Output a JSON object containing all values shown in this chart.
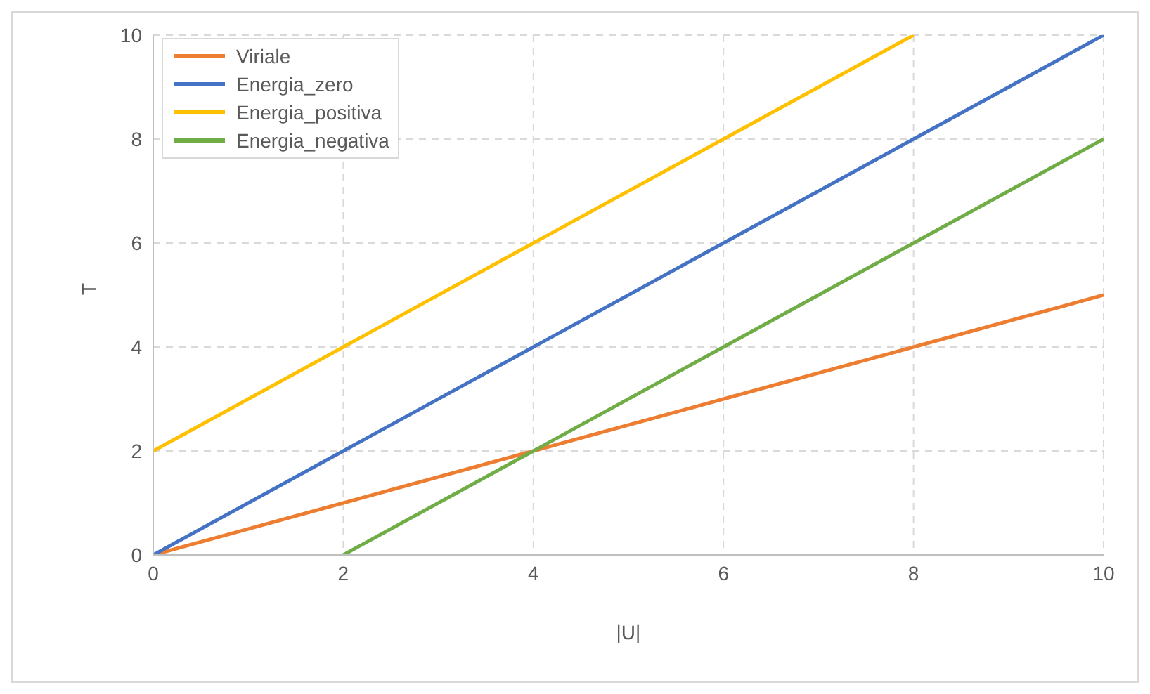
{
  "chart_data": {
    "type": "line",
    "xlabel": "|U|",
    "ylabel": "T",
    "xlim": [
      0,
      10
    ],
    "ylim": [
      0,
      10
    ],
    "xticks": [
      0,
      2,
      4,
      6,
      8,
      10
    ],
    "yticks": [
      0,
      2,
      4,
      6,
      8,
      10
    ],
    "grid": true,
    "legend": "top left",
    "line_style": "solid",
    "marker": "none",
    "series": [
      {
        "name": "Viriale",
        "color": "#ed7d31",
        "x": [
          0,
          2,
          4,
          6,
          8,
          10
        ],
        "values": [
          0,
          1,
          2,
          3,
          4,
          5
        ]
      },
      {
        "name": "Energia_zero",
        "color": "#4472c4",
        "x": [
          0,
          2,
          4,
          6,
          8,
          10
        ],
        "values": [
          0,
          2,
          4,
          6,
          8,
          10
        ]
      },
      {
        "name": "Energia_positiva",
        "color": "#ffc000",
        "x": [
          0,
          2,
          4,
          6,
          8
        ],
        "values": [
          2,
          4,
          6,
          8,
          10
        ]
      },
      {
        "name": "Energia_negativa",
        "color": "#70ad47",
        "x": [
          2,
          4,
          6,
          8,
          10
        ],
        "values": [
          0,
          2,
          4,
          6,
          8
        ]
      }
    ]
  }
}
